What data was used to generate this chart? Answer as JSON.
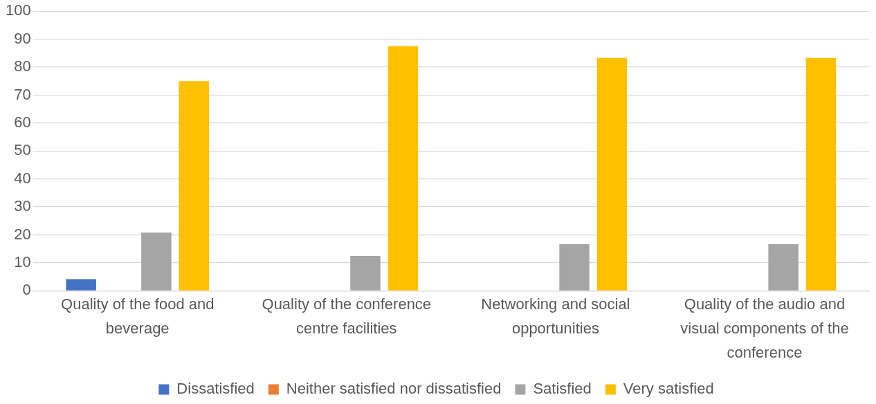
{
  "chart_data": {
    "type": "bar",
    "categories": [
      "Quality of the food and beverage",
      "Quality of the conference centre facilities",
      "Networking and social opportunities",
      "Quality of the audio and visual components of the conference"
    ],
    "series": [
      {
        "name": "Dissatisfied",
        "color": "#4472c4",
        "values": [
          4.2,
          0,
          0,
          0
        ]
      },
      {
        "name": "Neither satisfied nor dissatisfied",
        "color": "#ed7d31",
        "values": [
          0,
          0,
          0,
          0
        ]
      },
      {
        "name": "Satisfied",
        "color": "#a5a5a5",
        "values": [
          20.8,
          12.5,
          16.7,
          16.7
        ]
      },
      {
        "name": "Very satisfied",
        "color": "#ffc000",
        "values": [
          75,
          87.5,
          83.3,
          83.3
        ]
      }
    ],
    "ylim": [
      0,
      100
    ],
    "yticks": [
      0,
      10,
      20,
      30,
      40,
      50,
      60,
      70,
      80,
      90,
      100
    ],
    "grid": "y",
    "legend": "bottom"
  }
}
